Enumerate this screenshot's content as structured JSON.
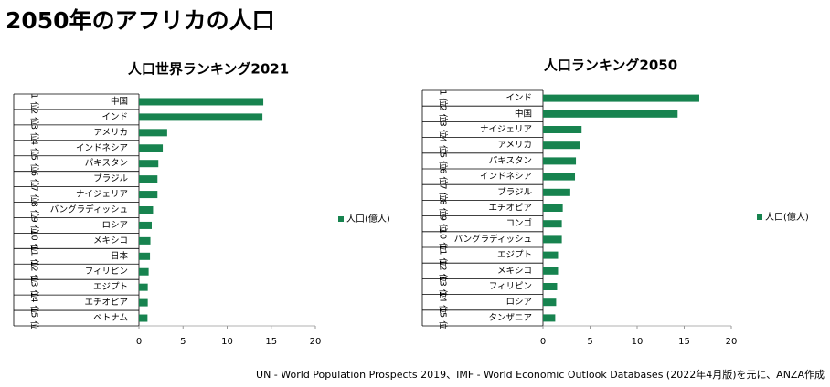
{
  "title": "2050年のアフリカの人口",
  "source": "UN - World Population Prospects 2019、IMF - World Economic Outlook Databases (2022年4月版)を元に、ANZA作成",
  "chart_data": [
    {
      "type": "bar",
      "orientation": "horizontal",
      "title": "人口世界ランキング2021",
      "rank_labels": [
        "1 位",
        "2 位",
        "3 位",
        "4 位",
        "5 位",
        "6 位",
        "7 位",
        "8 位",
        "9 位",
        "10 位",
        "11 位",
        "12 位",
        "13 位",
        "14 位",
        "15 位"
      ],
      "categories": [
        "中国",
        "インド",
        "アメリカ",
        "インドネシア",
        "パキスタン",
        "ブラジル",
        "ナイジェリア",
        "バングラディッシュ",
        "ロシア",
        "メキシコ",
        "日本",
        "フィリピン",
        "エジプト",
        "エチオピア",
        "ベトナム"
      ],
      "series": [
        {
          "name": "人口(億人)",
          "color": "#17834f",
          "values": [
            14.1,
            14.0,
            3.2,
            2.7,
            2.2,
            2.1,
            2.1,
            1.6,
            1.45,
            1.3,
            1.25,
            1.1,
            1.0,
            1.0,
            0.97
          ]
        }
      ],
      "xlim": [
        0,
        20
      ],
      "xticks": [
        0,
        5,
        10,
        15,
        20
      ],
      "legend": "right"
    },
    {
      "type": "bar",
      "orientation": "horizontal",
      "title": "人口ランキング2050",
      "rank_labels": [
        "1 位",
        "2 位",
        "3 位",
        "4 位",
        "5 位",
        "6 位",
        "7 位",
        "8 位",
        "9 位",
        "10 位",
        "11 位",
        "12 位",
        "13 位",
        "14 位",
        "15 位"
      ],
      "categories": [
        "インド",
        "中国",
        "ナイジェリア",
        "アメリカ",
        "パキスタン",
        "インドネシア",
        "ブラジル",
        "エチオピア",
        "コンゴ",
        "バングラディッシュ",
        "エジプト",
        "メキシコ",
        "フィリピン",
        "ロシア",
        "タンザニア"
      ],
      "series": [
        {
          "name": "人口(億人)",
          "color": "#17834f",
          "values": [
            16.6,
            14.3,
            4.1,
            3.9,
            3.5,
            3.4,
            2.9,
            2.1,
            2.0,
            2.0,
            1.6,
            1.6,
            1.5,
            1.4,
            1.3
          ]
        }
      ],
      "xlim": [
        0,
        20
      ],
      "xticks": [
        0,
        5,
        10,
        15,
        20
      ],
      "legend": "right"
    }
  ]
}
